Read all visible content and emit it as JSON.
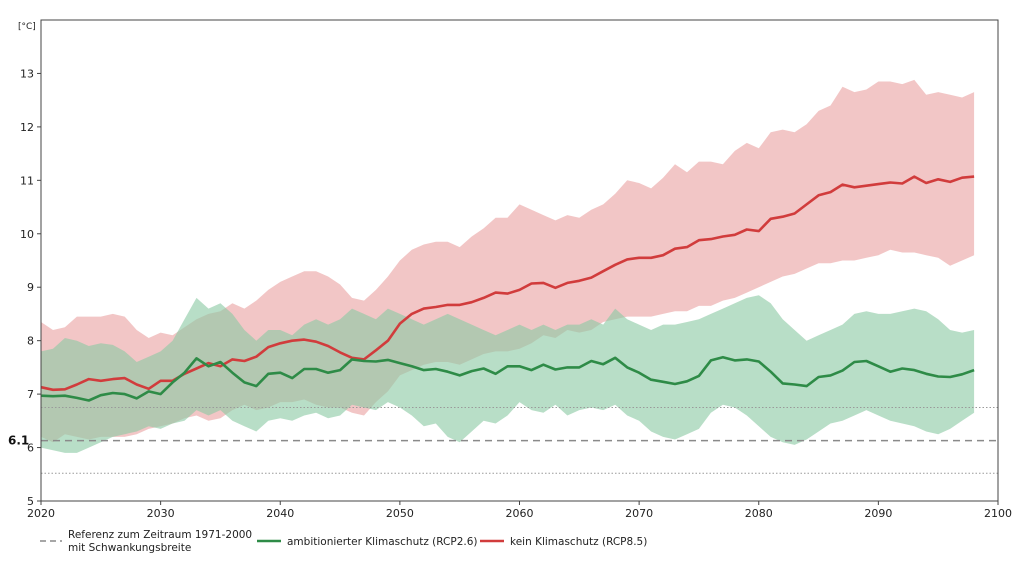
{
  "chart_data": {
    "type": "line",
    "ylabel": "[°C]",
    "xlim": [
      2020,
      2100
    ],
    "ylim": [
      5,
      14
    ],
    "x_ticks": [
      2020,
      2030,
      2040,
      2050,
      2060,
      2070,
      2080,
      2090,
      2100
    ],
    "y_ticks": [
      5,
      6,
      7,
      8,
      9,
      10,
      11,
      12,
      13
    ],
    "grid": false,
    "reference": {
      "value": 6.13,
      "value_label": "6.1",
      "band": [
        5.52,
        6.75
      ],
      "legend_label_line1": "Referenz zum Zeitraum 1971-2000",
      "legend_label_line2": "mit Schwankungsbreite",
      "color": "#888888"
    },
    "series": [
      {
        "name": "ambitionierter Klimaschutz (RCP2.6)",
        "color": "#2e8b47",
        "band_color": "#8ccaa5",
        "x": [
          2020,
          2021,
          2022,
          2023,
          2024,
          2025,
          2026,
          2027,
          2028,
          2029,
          2030,
          2031,
          2032,
          2033,
          2034,
          2035,
          2036,
          2037,
          2038,
          2039,
          2040,
          2041,
          2042,
          2043,
          2044,
          2045,
          2046,
          2047,
          2048,
          2049,
          2050,
          2051,
          2052,
          2053,
          2054,
          2055,
          2056,
          2057,
          2058,
          2059,
          2060,
          2061,
          2062,
          2063,
          2064,
          2065,
          2066,
          2067,
          2068,
          2069,
          2070,
          2071,
          2072,
          2073,
          2074,
          2075,
          2076,
          2077,
          2078,
          2079,
          2080,
          2081,
          2082,
          2083,
          2084,
          2085,
          2086,
          2087,
          2088,
          2089,
          2090,
          2091,
          2092,
          2093,
          2094,
          2095,
          2096,
          2097,
          2098
        ],
        "values": [
          6.97,
          6.96,
          6.97,
          6.93,
          6.88,
          6.98,
          7.02,
          7.0,
          6.92,
          7.05,
          7.0,
          7.22,
          7.4,
          7.67,
          7.52,
          7.6,
          7.4,
          7.22,
          7.15,
          7.38,
          7.4,
          7.3,
          7.47,
          7.47,
          7.4,
          7.45,
          7.65,
          7.62,
          7.61,
          7.64,
          7.58,
          7.52,
          7.45,
          7.47,
          7.42,
          7.35,
          7.43,
          7.48,
          7.38,
          7.52,
          7.52,
          7.45,
          7.55,
          7.46,
          7.5,
          7.5,
          7.62,
          7.56,
          7.68,
          7.5,
          7.4,
          7.27,
          7.23,
          7.19,
          7.24,
          7.34,
          7.63,
          7.69,
          7.63,
          7.65,
          7.61,
          7.42,
          7.2,
          7.18,
          7.15,
          7.32,
          7.35,
          7.44,
          7.6,
          7.62,
          7.52,
          7.42,
          7.48,
          7.45,
          7.38,
          7.33,
          7.32,
          7.37,
          7.45
        ],
        "upper": [
          7.8,
          7.85,
          8.05,
          8.0,
          7.9,
          7.95,
          7.92,
          7.8,
          7.6,
          7.7,
          7.8,
          8.0,
          8.4,
          8.8,
          8.6,
          8.7,
          8.5,
          8.2,
          8.0,
          8.2,
          8.2,
          8.1,
          8.3,
          8.4,
          8.3,
          8.4,
          8.6,
          8.5,
          8.4,
          8.6,
          8.5,
          8.4,
          8.3,
          8.4,
          8.5,
          8.4,
          8.3,
          8.2,
          8.1,
          8.2,
          8.3,
          8.2,
          8.3,
          8.2,
          8.3,
          8.3,
          8.4,
          8.3,
          8.6,
          8.4,
          8.3,
          8.2,
          8.3,
          8.3,
          8.35,
          8.4,
          8.5,
          8.6,
          8.7,
          8.8,
          8.85,
          8.7,
          8.4,
          8.2,
          8.0,
          8.1,
          8.2,
          8.3,
          8.5,
          8.55,
          8.5,
          8.5,
          8.55,
          8.6,
          8.55,
          8.4,
          8.2,
          8.15,
          8.2
        ],
        "lower": [
          6.0,
          5.95,
          5.9,
          5.9,
          6.0,
          6.1,
          6.2,
          6.25,
          6.3,
          6.4,
          6.35,
          6.45,
          6.5,
          6.7,
          6.6,
          6.7,
          6.5,
          6.4,
          6.3,
          6.5,
          6.55,
          6.5,
          6.6,
          6.65,
          6.55,
          6.6,
          6.8,
          6.75,
          6.7,
          6.85,
          6.75,
          6.6,
          6.4,
          6.45,
          6.2,
          6.1,
          6.3,
          6.5,
          6.45,
          6.6,
          6.85,
          6.7,
          6.65,
          6.8,
          6.6,
          6.7,
          6.75,
          6.7,
          6.8,
          6.6,
          6.5,
          6.3,
          6.2,
          6.15,
          6.25,
          6.35,
          6.65,
          6.8,
          6.75,
          6.6,
          6.4,
          6.2,
          6.1,
          6.05,
          6.15,
          6.3,
          6.45,
          6.5,
          6.6,
          6.7,
          6.6,
          6.5,
          6.45,
          6.4,
          6.3,
          6.25,
          6.35,
          6.5,
          6.65
        ]
      },
      {
        "name": "kein Klimaschutz (RCP8.5)",
        "color": "#d13c3c",
        "band_color": "#eeb3b3",
        "x": [
          2020,
          2021,
          2022,
          2023,
          2024,
          2025,
          2026,
          2027,
          2028,
          2029,
          2030,
          2031,
          2032,
          2033,
          2034,
          2035,
          2036,
          2037,
          2038,
          2039,
          2040,
          2041,
          2042,
          2043,
          2044,
          2045,
          2046,
          2047,
          2048,
          2049,
          2050,
          2051,
          2052,
          2053,
          2054,
          2055,
          2056,
          2057,
          2058,
          2059,
          2060,
          2061,
          2062,
          2063,
          2064,
          2065,
          2066,
          2067,
          2068,
          2069,
          2070,
          2071,
          2072,
          2073,
          2074,
          2075,
          2076,
          2077,
          2078,
          2079,
          2080,
          2081,
          2082,
          2083,
          2084,
          2085,
          2086,
          2087,
          2088,
          2089,
          2090,
          2091,
          2092,
          2093,
          2094,
          2095,
          2096,
          2097,
          2098
        ],
        "values": [
          7.13,
          7.08,
          7.09,
          7.18,
          7.28,
          7.25,
          7.28,
          7.3,
          7.18,
          7.1,
          7.25,
          7.25,
          7.38,
          7.48,
          7.58,
          7.52,
          7.65,
          7.62,
          7.7,
          7.88,
          7.95,
          8.0,
          8.02,
          7.98,
          7.9,
          7.78,
          7.68,
          7.65,
          7.82,
          8.0,
          8.32,
          8.5,
          8.6,
          8.63,
          8.67,
          8.67,
          8.72,
          8.8,
          8.9,
          8.88,
          8.95,
          9.07,
          9.08,
          8.99,
          9.08,
          9.12,
          9.18,
          9.3,
          9.42,
          9.52,
          9.55,
          9.55,
          9.6,
          9.72,
          9.75,
          9.88,
          9.9,
          9.95,
          9.98,
          10.08,
          10.05,
          10.28,
          10.32,
          10.38,
          10.55,
          10.72,
          10.78,
          10.92,
          10.87,
          10.9,
          10.93,
          10.96,
          10.94,
          11.07,
          10.95,
          11.02,
          10.97,
          11.05,
          11.07
        ],
        "upper": [
          8.35,
          8.2,
          8.25,
          8.45,
          8.45,
          8.45,
          8.5,
          8.45,
          8.2,
          8.05,
          8.15,
          8.1,
          8.25,
          8.4,
          8.5,
          8.55,
          8.7,
          8.6,
          8.75,
          8.95,
          9.1,
          9.2,
          9.3,
          9.3,
          9.2,
          9.05,
          8.8,
          8.75,
          8.95,
          9.2,
          9.5,
          9.7,
          9.8,
          9.85,
          9.85,
          9.75,
          9.95,
          10.1,
          10.3,
          10.3,
          10.55,
          10.45,
          10.35,
          10.25,
          10.35,
          10.3,
          10.45,
          10.55,
          10.75,
          11.0,
          10.95,
          10.85,
          11.05,
          11.3,
          11.15,
          11.35,
          11.35,
          11.3,
          11.55,
          11.7,
          11.6,
          11.9,
          11.95,
          11.9,
          12.05,
          12.3,
          12.4,
          12.75,
          12.65,
          12.7,
          12.85,
          12.85,
          12.8,
          12.88,
          12.6,
          12.65,
          12.6,
          12.55,
          12.65
        ],
        "lower": [
          6.2,
          6.1,
          6.25,
          6.2,
          6.15,
          6.2,
          6.2,
          6.2,
          6.25,
          6.35,
          6.4,
          6.45,
          6.55,
          6.6,
          6.5,
          6.55,
          6.7,
          6.8,
          6.7,
          6.75,
          6.85,
          6.85,
          6.9,
          6.8,
          6.75,
          6.75,
          6.65,
          6.6,
          6.85,
          7.05,
          7.35,
          7.45,
          7.55,
          7.6,
          7.6,
          7.55,
          7.65,
          7.75,
          7.8,
          7.8,
          7.85,
          7.95,
          8.1,
          8.05,
          8.2,
          8.15,
          8.2,
          8.35,
          8.4,
          8.45,
          8.45,
          8.45,
          8.5,
          8.55,
          8.55,
          8.65,
          8.65,
          8.75,
          8.8,
          8.9,
          9.0,
          9.1,
          9.2,
          9.25,
          9.35,
          9.45,
          9.45,
          9.5,
          9.5,
          9.55,
          9.6,
          9.7,
          9.65,
          9.65,
          9.6,
          9.55,
          9.4,
          9.5,
          9.6
        ]
      }
    ]
  }
}
